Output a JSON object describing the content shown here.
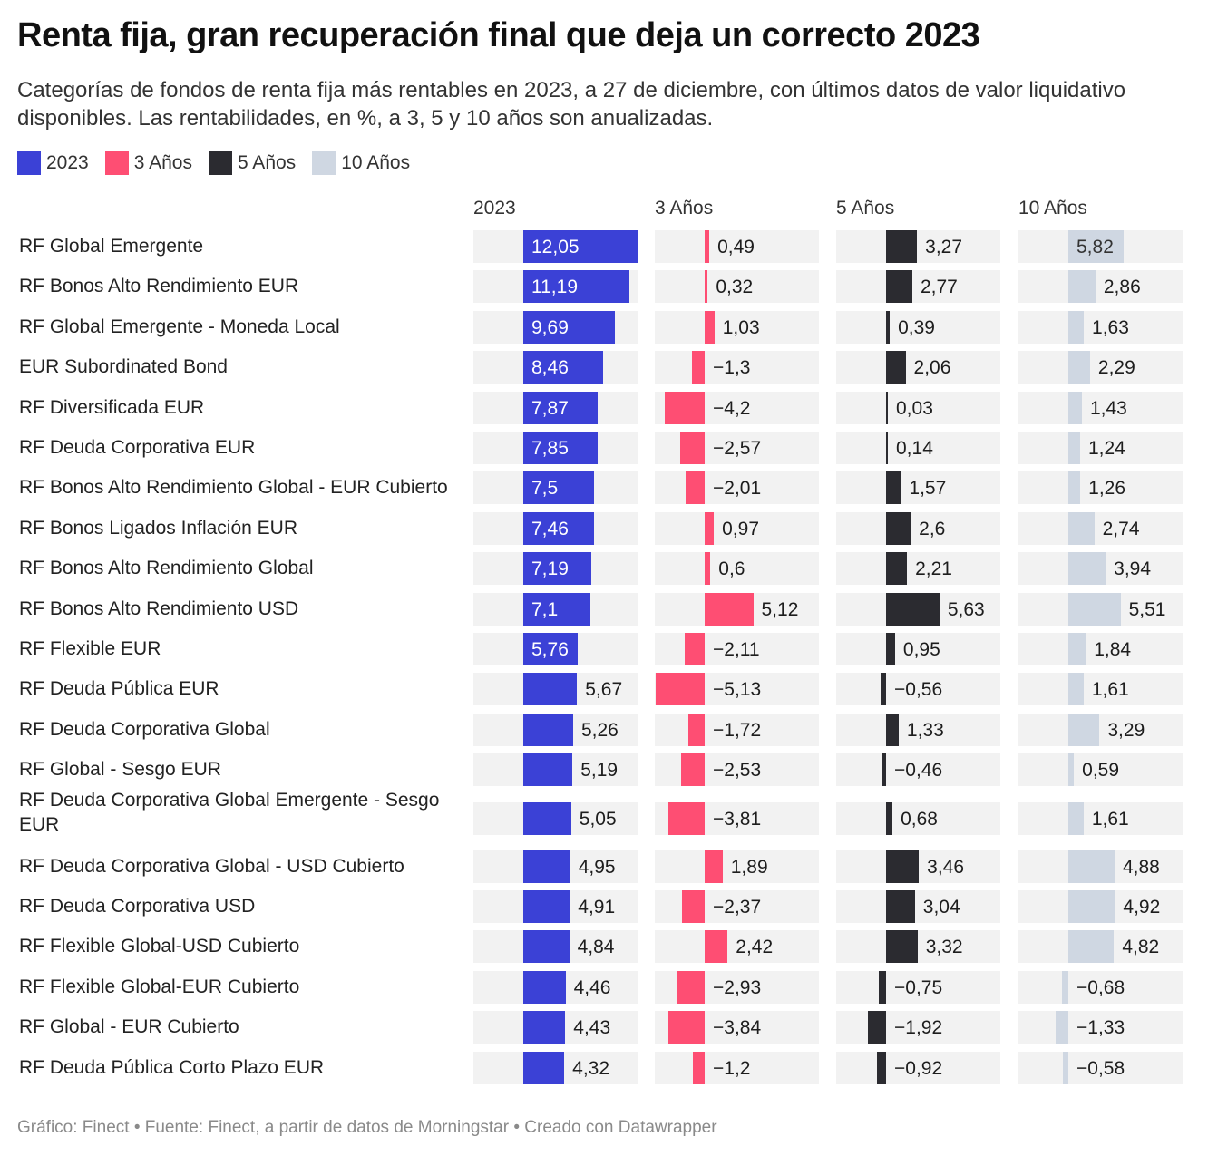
{
  "header": {
    "title": "Renta fija, gran recuperación final que deja un correcto 2023",
    "subtitle": "Categorías de fondos de renta fija más rentables en 2023, a 27 de diciembre, con últimos datos de valor liquidativo disponibles. Las rentabilidades, en %, a 3, 5 y 10 años son anualizadas."
  },
  "legend": [
    {
      "label": "2023",
      "color": "#3b41d6"
    },
    {
      "label": "3 Años",
      "color": "#fe4e73"
    },
    {
      "label": "5 Años",
      "color": "#2b2b30"
    },
    {
      "label": "10 Años",
      "color": "#cfd7e2"
    }
  ],
  "footer": "Gráfico: Finect • Fuente: Finect, a partir de datos de Morningstar • Creado con Datawrapper",
  "chart_data": {
    "type": "bar",
    "orientation": "horizontal",
    "title": "Renta fija, gran recuperación final que deja un correcto 2023",
    "unit": "%",
    "decimal_separator": ",",
    "xlim": [
      -5.3,
      12.05
    ],
    "categories": [
      "RF Global Emergente",
      "RF Bonos Alto Rendimiento EUR",
      "RF Global Emergente - Moneda Local",
      "EUR Subordinated Bond",
      "RF Diversificada EUR",
      "RF Deuda Corporativa EUR",
      "RF Bonos Alto Rendimiento Global - EUR Cubierto",
      "RF Bonos Ligados Inflación EUR",
      "RF Bonos Alto Rendimiento Global",
      "RF Bonos Alto Rendimiento USD",
      "RF Flexible EUR",
      "RF Deuda Pública EUR",
      "RF Deuda Corporativa Global",
      "RF Global - Sesgo EUR",
      "RF Deuda Corporativa Global Emergente - Sesgo EUR",
      "RF Deuda Corporativa Global - USD Cubierto",
      "RF Deuda Corporativa USD",
      "RF Flexible Global-USD Cubierto",
      "RF Flexible Global-EUR Cubierto",
      "RF Global - EUR Cubierto",
      "RF Deuda Pública Corto Plazo EUR"
    ],
    "series": [
      {
        "name": "2023",
        "color": "#3b41d6",
        "values": [
          12.05,
          11.19,
          9.69,
          8.46,
          7.87,
          7.85,
          7.5,
          7.46,
          7.19,
          7.1,
          5.76,
          5.67,
          5.26,
          5.19,
          5.05,
          4.95,
          4.91,
          4.84,
          4.46,
          4.43,
          4.32
        ]
      },
      {
        "name": "3 Años",
        "color": "#fe4e73",
        "values": [
          0.49,
          0.32,
          1.03,
          -1.3,
          -4.2,
          -2.57,
          -2.01,
          0.97,
          0.6,
          5.12,
          -2.11,
          -5.13,
          -1.72,
          -2.53,
          -3.81,
          1.89,
          -2.37,
          2.42,
          -2.93,
          -3.84,
          -1.2
        ]
      },
      {
        "name": "5 Años",
        "color": "#2b2b30",
        "values": [
          3.27,
          2.77,
          0.39,
          2.06,
          0.03,
          0.14,
          1.57,
          2.6,
          2.21,
          5.63,
          0.95,
          -0.56,
          1.33,
          -0.46,
          0.68,
          3.46,
          3.04,
          3.32,
          -0.75,
          -1.92,
          -0.92
        ]
      },
      {
        "name": "10 Años",
        "color": "#cfd7e2",
        "values": [
          5.82,
          2.86,
          1.63,
          2.29,
          1.43,
          1.24,
          1.26,
          2.74,
          3.94,
          5.51,
          1.84,
          1.61,
          3.29,
          0.59,
          1.61,
          4.88,
          4.92,
          4.82,
          -0.68,
          -1.33,
          -0.58
        ]
      }
    ],
    "labels_inside_threshold": {
      "2023": 5.7,
      "10 Años": 5.8
    }
  }
}
